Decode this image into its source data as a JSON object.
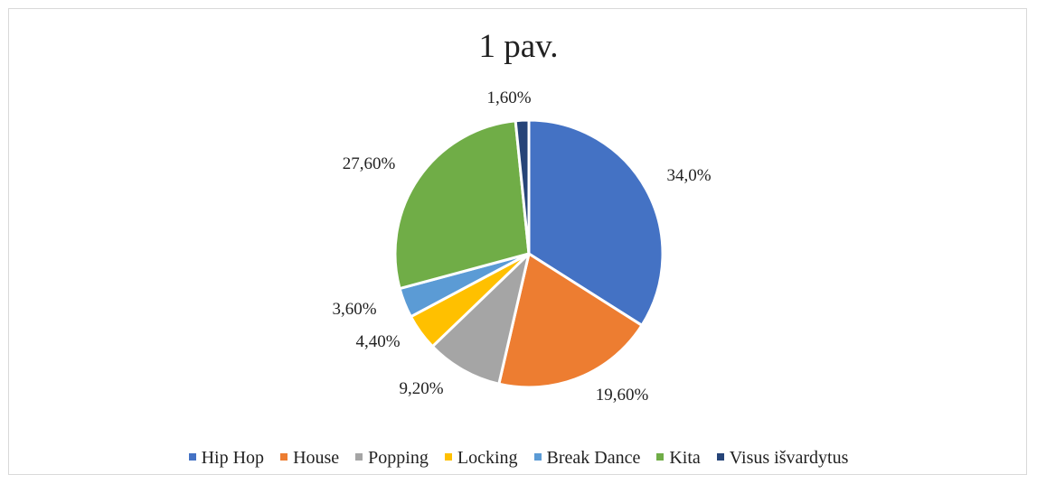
{
  "chart_data": {
    "type": "pie",
    "title": "1 pav.",
    "slices": [
      {
        "name": "Hip Hop",
        "value": 34.0,
        "label": "34,0%",
        "color": "#4472C4"
      },
      {
        "name": "House",
        "value": 19.6,
        "label": "19,60%",
        "color": "#ED7D31"
      },
      {
        "name": "Popping",
        "value": 9.2,
        "label": "9,20%",
        "color": "#A5A5A5"
      },
      {
        "name": "Locking",
        "value": 4.4,
        "label": "4,40%",
        "color": "#FFC000"
      },
      {
        "name": "Break Dance",
        "value": 3.6,
        "label": "3,60%",
        "color": "#5B9BD5"
      },
      {
        "name": "Kita",
        "value": 27.6,
        "label": "27,60%",
        "color": "#70AD47"
      },
      {
        "name": "Visus išvardytus",
        "value": 1.6,
        "label": "1,60%",
        "color": "#264478"
      }
    ],
    "legend_position": "bottom",
    "start_angle": "top, clockwise"
  }
}
